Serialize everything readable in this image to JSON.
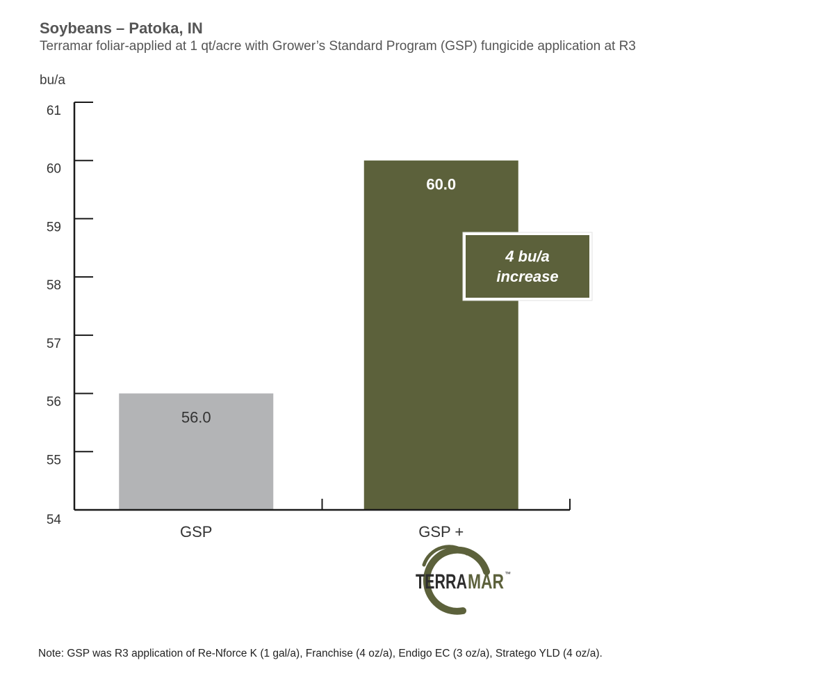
{
  "title": "Soybeans – Patoka, IN",
  "subtitle": "Terramar foliar-applied at 1 qt/acre with Grower’s Standard Program (GSP) fungicide application at R3",
  "note": "Note: GSP was R3 application of Re-Nforce K (1 gal/a), Franchise (4 oz/a), Endigo EC (3 oz/a), Stratego YLD (4 oz/a).",
  "callout": {
    "line1": "4 bu/a",
    "line2": "increase"
  },
  "logo": {
    "word_left": "TERRA",
    "word_right": "MAR",
    "mark": "™"
  },
  "colors": {
    "gsp_bar": "#b3b4b6",
    "terramar_bar": "#5c613b",
    "axis": "#1a1a1a"
  },
  "chart_data": {
    "type": "bar",
    "ylabel": "bu/a",
    "ylim": [
      54,
      61
    ],
    "yticks": [
      54,
      55,
      56,
      57,
      58,
      59,
      60,
      61
    ],
    "categories": [
      "GSP",
      "GSP +"
    ],
    "values": [
      56.0,
      60.0
    ],
    "value_labels": [
      "56.0",
      "60.0"
    ],
    "bar_colors": [
      "#b3b4b6",
      "#5c613b"
    ],
    "label_colors": [
      "#333333",
      "#ffffff"
    ],
    "grid": false
  }
}
